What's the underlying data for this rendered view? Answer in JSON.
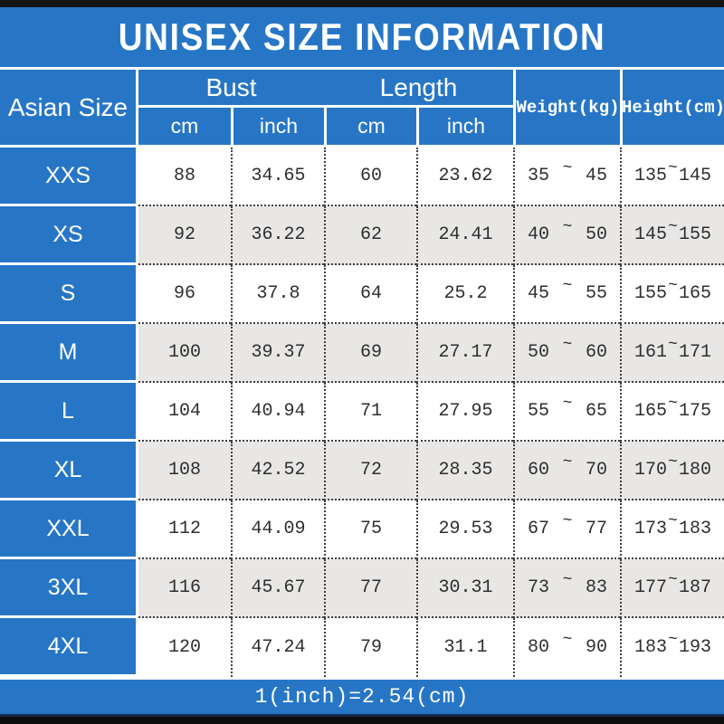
{
  "title": "UNISEX SIZE INFORMATION",
  "symbols": {
    "tilde": "~"
  },
  "colors": {
    "primary_blue": "#2776c6",
    "alt_row_gray": "#e8e7e5",
    "bar_black": "#141414",
    "text_dark": "#2e2e2e",
    "text_white": "#ffffff"
  },
  "table": {
    "header": {
      "asian_size": "Asian Size",
      "bust": "Bust",
      "length": "Length",
      "weight": "Weight(kg)",
      "height": "Height(cm)",
      "cm": "cm",
      "inch": "inch"
    },
    "rows": [
      {
        "size": "XXS",
        "bust_cm": "88",
        "bust_inch": "34.65",
        "length_cm": "60",
        "length_inch": "23.62",
        "weight_min": "35",
        "weight_max": "45",
        "height_min": "135",
        "height_max": "145"
      },
      {
        "size": "XS",
        "bust_cm": "92",
        "bust_inch": "36.22",
        "length_cm": "62",
        "length_inch": "24.41",
        "weight_min": "40",
        "weight_max": "50",
        "height_min": "145",
        "height_max": "155"
      },
      {
        "size": "S",
        "bust_cm": "96",
        "bust_inch": "37.8",
        "length_cm": "64",
        "length_inch": "25.2",
        "weight_min": "45",
        "weight_max": "55",
        "height_min": "155",
        "height_max": "165"
      },
      {
        "size": "M",
        "bust_cm": "100",
        "bust_inch": "39.37",
        "length_cm": "69",
        "length_inch": "27.17",
        "weight_min": "50",
        "weight_max": "60",
        "height_min": "161",
        "height_max": "171"
      },
      {
        "size": "L",
        "bust_cm": "104",
        "bust_inch": "40.94",
        "length_cm": "71",
        "length_inch": "27.95",
        "weight_min": "55",
        "weight_max": "65",
        "height_min": "165",
        "height_max": "175"
      },
      {
        "size": "XL",
        "bust_cm": "108",
        "bust_inch": "42.52",
        "length_cm": "72",
        "length_inch": "28.35",
        "weight_min": "60",
        "weight_max": "70",
        "height_min": "170",
        "height_max": "180"
      },
      {
        "size": "XXL",
        "bust_cm": "112",
        "bust_inch": "44.09",
        "length_cm": "75",
        "length_inch": "29.53",
        "weight_min": "67",
        "weight_max": "77",
        "height_min": "173",
        "height_max": "183"
      },
      {
        "size": "3XL",
        "bust_cm": "116",
        "bust_inch": "45.67",
        "length_cm": "77",
        "length_inch": "30.31",
        "weight_min": "73",
        "weight_max": "83",
        "height_min": "177",
        "height_max": "187"
      },
      {
        "size": "4XL",
        "bust_cm": "120",
        "bust_inch": "47.24",
        "length_cm": "79",
        "length_inch": "31.1",
        "weight_min": "80",
        "weight_max": "90",
        "height_min": "183",
        "height_max": "193"
      }
    ]
  },
  "footer": {
    "note": "1(inch)=2.54(cm)"
  },
  "chart_data": {
    "type": "table",
    "title": "UNISEX SIZE INFORMATION",
    "columns": [
      "Asian Size",
      "Bust cm",
      "Bust inch",
      "Length cm",
      "Length inch",
      "Weight(kg)",
      "Height(cm)"
    ],
    "rows": [
      [
        "XXS",
        88,
        34.65,
        60,
        23.62,
        "35~45",
        "135~145"
      ],
      [
        "XS",
        92,
        36.22,
        62,
        24.41,
        "40~50",
        "145~155"
      ],
      [
        "S",
        96,
        37.8,
        64,
        25.2,
        "45~55",
        "155~165"
      ],
      [
        "M",
        100,
        39.37,
        69,
        27.17,
        "50~60",
        "161~171"
      ],
      [
        "L",
        104,
        40.94,
        71,
        27.95,
        "55~65",
        "165~175"
      ],
      [
        "XL",
        108,
        42.52,
        72,
        28.35,
        "60~70",
        "170~180"
      ],
      [
        "XXL",
        112,
        44.09,
        75,
        29.53,
        "67~77",
        "173~183"
      ],
      [
        "3XL",
        116,
        45.67,
        77,
        30.31,
        "73~83",
        "177~187"
      ],
      [
        "4XL",
        120,
        47.24,
        79,
        31.1,
        "80~90",
        "183~193"
      ]
    ],
    "note": "1(inch)=2.54(cm)"
  }
}
